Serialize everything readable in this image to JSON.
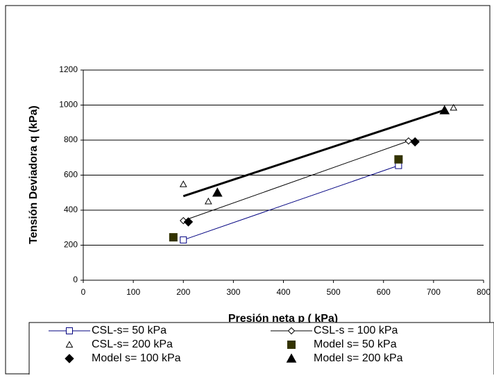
{
  "chart_data": {
    "type": "scatter",
    "x_label": "Presión neta  p ( kPa)",
    "y_label": "Tensión Deviadora  q (kPa)",
    "xlim": [
      0,
      800
    ],
    "xticks": [
      0,
      100,
      200,
      300,
      400,
      500,
      600,
      700,
      800
    ],
    "ylim": [
      0,
      1200
    ],
    "yticks": [
      0,
      200,
      400,
      600,
      800,
      1000,
      1200
    ],
    "grid": true,
    "legend": "bottom",
    "series": [
      {
        "name": "CSL-s= 50 kPa",
        "color": "#000080",
        "marker": "square",
        "filled": false,
        "line": true,
        "x": [
          200,
          630
        ],
        "values": [
          230,
          655
        ]
      },
      {
        "name": "CSL-s = 100 kPa",
        "color": "#000000",
        "marker": "diamond",
        "filled": false,
        "line": true,
        "x": [
          200,
          650
        ],
        "values": [
          340,
          795
        ]
      },
      {
        "name": "CSL-s= 200 kPa",
        "color": "#000000",
        "marker": "triangle",
        "filled": false,
        "line": false,
        "x": [
          200,
          250,
          740
        ],
        "values": [
          548,
          450,
          985
        ],
        "trendline": {
          "x": [
            200,
            720
          ],
          "values": [
            480,
            970
          ]
        }
      },
      {
        "name": "Model s= 50 kPa",
        "color": "#333300",
        "marker": "square",
        "filled": true,
        "line": false,
        "x": [
          180,
          630
        ],
        "values": [
          245,
          690
        ]
      },
      {
        "name": "Model s= 100 kPa",
        "color": "#000000",
        "marker": "diamond",
        "filled": true,
        "line": false,
        "x": [
          210,
          663
        ],
        "values": [
          333,
          790
        ]
      },
      {
        "name": "Model s= 200 kPa",
        "color": "#000000",
        "marker": "triangle",
        "filled": true,
        "line": false,
        "x": [
          268,
          722
        ],
        "values": [
          500,
          970
        ]
      }
    ]
  }
}
